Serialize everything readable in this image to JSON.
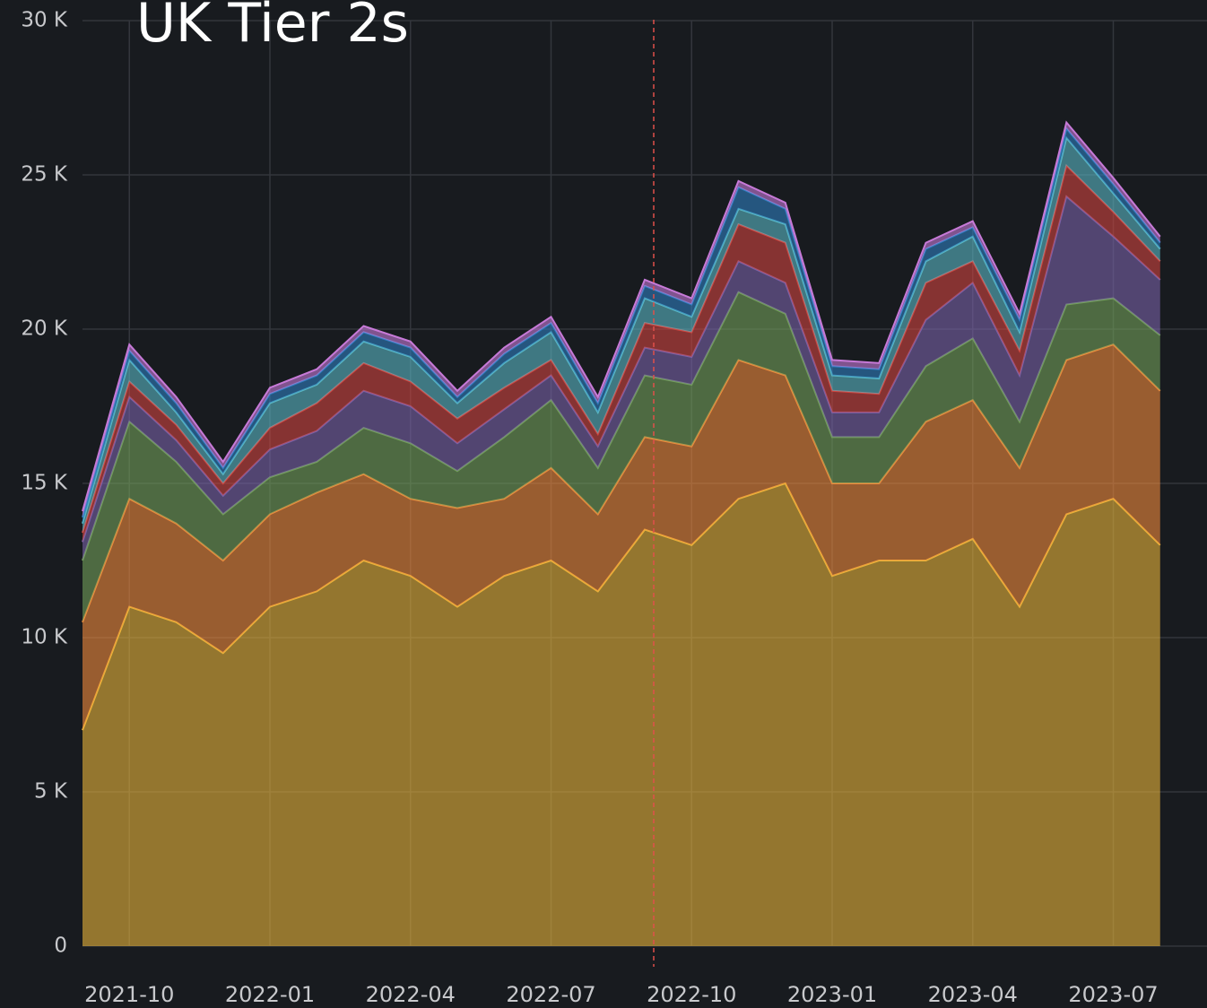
{
  "chart_data": {
    "type": "stacked_area",
    "title": "UK Tier 2s",
    "x": [
      "2021-09",
      "2021-10",
      "2021-11",
      "2021-12",
      "2022-01",
      "2022-02",
      "2022-03",
      "2022-04",
      "2022-05",
      "2022-06",
      "2022-07",
      "2022-08",
      "2022-09",
      "2022-10",
      "2022-11",
      "2022-12",
      "2023-01",
      "2023-02",
      "2023-03",
      "2023-04",
      "2023-05",
      "2023-06",
      "2023-07",
      "2023-08"
    ],
    "xlim": [
      "2021-09",
      "2023-09"
    ],
    "xticks": [
      "2021-10",
      "2022-01",
      "2022-04",
      "2022-07",
      "2022-10",
      "2023-01",
      "2023-04",
      "2023-07"
    ],
    "ylim": [
      0,
      30000
    ],
    "yticks": [
      0,
      {
        "value": 5000,
        "label": "5 K"
      },
      {
        "value": 10000,
        "label": "10 K"
      },
      {
        "value": 15000,
        "label": "15 K"
      },
      {
        "value": 20000,
        "label": "20 K"
      },
      {
        "value": 25000,
        "label": "25 K"
      },
      {
        "value": 30000,
        "label": "30 K"
      }
    ],
    "grid": true,
    "vline": "2022-09",
    "series": [
      {
        "color": "#e8b43a",
        "values": [
          7000,
          11000,
          10500,
          9500,
          11000,
          11500,
          12500,
          12000,
          11000,
          12000,
          12500,
          11500,
          13500,
          13000,
          14500,
          15000,
          12000,
          12500,
          12500,
          13200,
          11000,
          14000,
          14500,
          13000
        ]
      },
      {
        "color": "#f08a3c",
        "values": [
          3500,
          3500,
          3200,
          3000,
          3000,
          3200,
          2800,
          2500,
          3200,
          2500,
          3000,
          2500,
          3000,
          3200,
          4500,
          3500,
          3000,
          2500,
          4500,
          4500,
          4500,
          5000,
          5000,
          5000
        ]
      },
      {
        "color": "#73a05a",
        "values": [
          2000,
          2500,
          2000,
          1500,
          1200,
          1000,
          1500,
          1800,
          1200,
          2000,
          2200,
          1500,
          2000,
          2000,
          2200,
          2000,
          1500,
          1500,
          1800,
          2000,
          1500,
          1800,
          1500,
          1800
        ]
      },
      {
        "color": "#7a62a8",
        "values": [
          600,
          800,
          700,
          600,
          900,
          1000,
          1200,
          1200,
          900,
          900,
          800,
          700,
          900,
          900,
          1000,
          1000,
          800,
          800,
          1500,
          1800,
          1500,
          3500,
          2000,
          1800
        ]
      },
      {
        "color": "#d0453f",
        "values": [
          300,
          500,
          500,
          400,
          700,
          900,
          900,
          800,
          800,
          700,
          500,
          400,
          800,
          800,
          1200,
          1300,
          700,
          600,
          1200,
          700,
          800,
          1000,
          800,
          600
        ]
      },
      {
        "color": "#5ab8c4",
        "values": [
          300,
          700,
          400,
          300,
          800,
          600,
          700,
          800,
          500,
          800,
          900,
          700,
          800,
          500,
          500,
          600,
          500,
          500,
          700,
          800,
          600,
          900,
          600,
          400
        ]
      },
      {
        "color": "#2f7fc0",
        "values": [
          200,
          300,
          300,
          200,
          300,
          300,
          300,
          300,
          200,
          300,
          300,
          300,
          400,
          400,
          700,
          500,
          300,
          300,
          400,
          300,
          400,
          300,
          300,
          200
        ]
      },
      {
        "color": "#c77ad8",
        "values": [
          200,
          200,
          200,
          200,
          200,
          200,
          200,
          200,
          200,
          200,
          200,
          200,
          200,
          200,
          200,
          200,
          200,
          200,
          200,
          200,
          200,
          200,
          200,
          200
        ]
      }
    ]
  }
}
